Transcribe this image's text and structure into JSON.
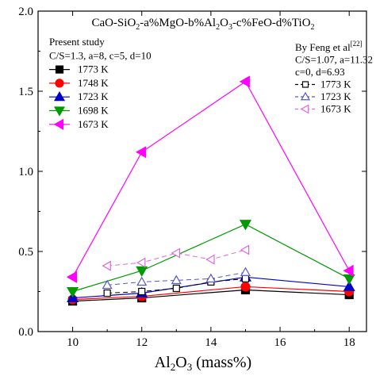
{
  "chart_data": {
    "type": "line",
    "title": "CaO-SiO2-a%MgO-b%Al2O3-c%FeO-d%TiO2",
    "xlabel": "Al2O3 (mass%)",
    "ylabel": "",
    "xlim": [
      9,
      18.5
    ],
    "ylim": [
      0,
      2.0
    ],
    "x_ticks": [
      10,
      12,
      14,
      16,
      18
    ],
    "y_ticks": [
      0.0,
      0.5,
      1.0,
      1.5,
      2.0
    ],
    "x_tick_labels": [
      "10",
      "12",
      "14",
      "16",
      "18"
    ],
    "y_tick_labels": [
      "0.0",
      "0.5",
      "1.0",
      "1.5",
      "2.0"
    ],
    "grid": false,
    "legend_groups": [
      {
        "title": "Present study",
        "subtitle": "C/S=1.3, a=8, c=5, d=10",
        "placement": "top-left"
      },
      {
        "title": "By Feng et al",
        "title_ref": "[22]",
        "subtitle": "C/S=1.07, a=11.32",
        "subtitle2": "c=0, d=6.93",
        "placement": "top-right"
      }
    ],
    "series": [
      {
        "name": "1773 K",
        "group": 0,
        "color": "#000000",
        "marker": "square",
        "dashed": false,
        "filled": true,
        "x": [
          10,
          12,
          15,
          18
        ],
        "y": [
          0.19,
          0.21,
          0.26,
          0.23
        ]
      },
      {
        "name": "1748 K",
        "group": 0,
        "color": "#ff0000",
        "marker": "circle",
        "dashed": false,
        "filled": true,
        "x": [
          10,
          12,
          15,
          18
        ],
        "y": [
          0.2,
          0.22,
          0.28,
          0.25
        ]
      },
      {
        "name": "1723 K",
        "group": 0,
        "color": "#0000cc",
        "marker": "triangle-up",
        "dashed": false,
        "filled": true,
        "x": [
          10,
          12,
          15,
          18
        ],
        "y": [
          0.21,
          0.24,
          0.34,
          0.28
        ]
      },
      {
        "name": "1698 K",
        "group": 0,
        "color": "#009900",
        "marker": "triangle-down",
        "dashed": false,
        "filled": true,
        "x": [
          10,
          12,
          15,
          18
        ],
        "y": [
          0.25,
          0.38,
          0.67,
          0.33
        ]
      },
      {
        "name": "1673 K",
        "group": 0,
        "color": "#ff00ff",
        "marker": "triangle-left",
        "dashed": false,
        "filled": true,
        "x": [
          10,
          12,
          15,
          18
        ],
        "y": [
          0.34,
          1.12,
          1.56,
          0.38
        ]
      },
      {
        "name": "1773 K",
        "group": 1,
        "color": "#000000",
        "marker": "square",
        "dashed": true,
        "filled": false,
        "x": [
          11,
          12,
          13,
          14,
          15
        ],
        "y": [
          0.24,
          0.25,
          0.27,
          0.31,
          0.33
        ]
      },
      {
        "name": "1723 K",
        "group": 1,
        "color": "#5555cc",
        "marker": "triangle-up",
        "dashed": true,
        "filled": false,
        "x": [
          11,
          12,
          13,
          14,
          15
        ],
        "y": [
          0.29,
          0.31,
          0.32,
          0.33,
          0.37
        ]
      },
      {
        "name": "1673 K",
        "group": 1,
        "color": "#dd66dd",
        "marker": "triangle-left",
        "dashed": true,
        "filled": false,
        "x": [
          11,
          12,
          13,
          14,
          15
        ],
        "y": [
          0.41,
          0.43,
          0.49,
          0.45,
          0.51
        ]
      }
    ]
  }
}
